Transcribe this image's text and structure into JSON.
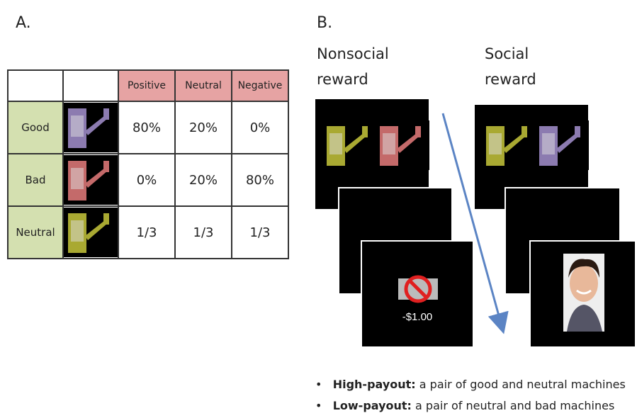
{
  "panel_a": {
    "label": "A.",
    "table": {
      "header": [
        "Positive",
        "Neutral",
        "Negative"
      ],
      "rows": [
        {
          "label": "Good",
          "cells": [
            "80%",
            "20%",
            "0%"
          ]
        },
        {
          "label": "Bad",
          "cells": [
            "0%",
            "20%",
            "80%"
          ]
        },
        {
          "label": "Neutral",
          "cells": [
            "1/3",
            "1/3",
            "1/3"
          ]
        }
      ]
    }
  },
  "panel_b": {
    "label": "B.",
    "columns": [
      {
        "title_lines": [
          "Nonsocial",
          "reward"
        ]
      },
      {
        "title_lines": [
          "Social",
          "reward"
        ]
      }
    ],
    "feedback": "-$1.00",
    "bullets": [
      {
        "term": "High-payout:",
        "text": "a pair of good and neutral machines"
      },
      {
        "term": "Low-payout:",
        "text": "a pair of neutral and bad machines"
      }
    ]
  }
}
